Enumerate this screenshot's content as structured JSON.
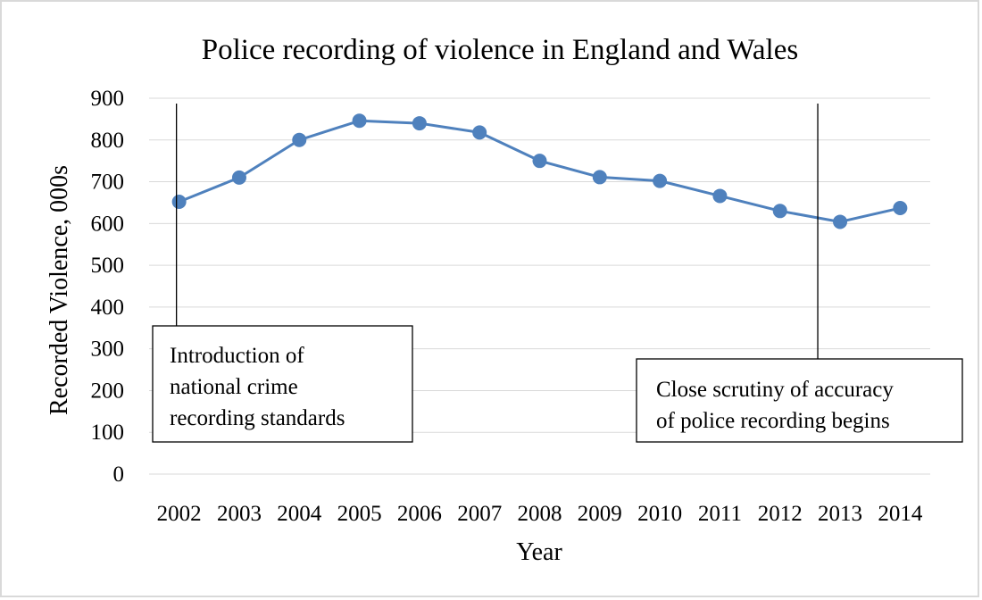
{
  "chart_data": {
    "type": "line",
    "title": "Police recording of violence in England and Wales",
    "xlabel": "Year",
    "ylabel": "Recorded Violence,  000s",
    "ylim": [
      0,
      900
    ],
    "yticks": [
      "0",
      "100",
      "200",
      "300",
      "400",
      "500",
      "600",
      "700",
      "800",
      "900"
    ],
    "categories": [
      "2002",
      "2003",
      "2004",
      "2005",
      "2006",
      "2007",
      "2008",
      "2009",
      "2010",
      "2011",
      "2012",
      "2013",
      "2014"
    ],
    "series": [
      {
        "color": "#4f81bd",
        "values": [
          652,
          710,
          800,
          846,
          840,
          818,
          750,
          711,
          702,
          666,
          630,
          604,
          637
        ]
      }
    ],
    "grid": "horizontal",
    "legend": "none",
    "annotations": [
      {
        "year": "2002",
        "lines": [
          "Introduction of",
          "national crime",
          "recording standards"
        ]
      },
      {
        "year": "2013",
        "lines": [
          "Close scrutiny of accuracy",
          "of police recording begins"
        ]
      }
    ]
  }
}
